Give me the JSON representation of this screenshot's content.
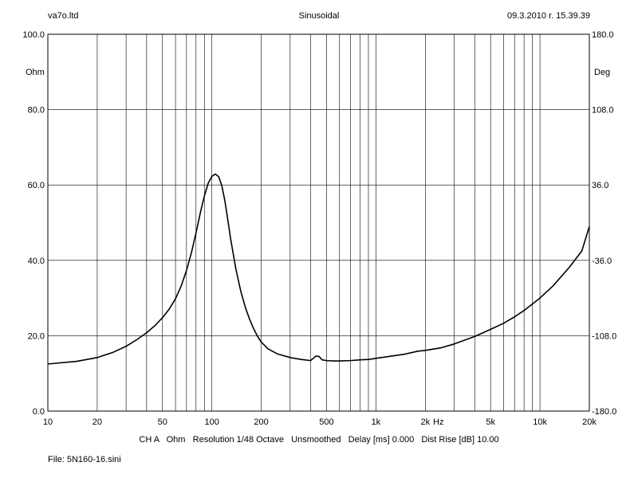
{
  "header": {
    "left": "va7o.ltd",
    "center": "Sinusoidal",
    "right": "09.3.2010 r. 15.39.39"
  },
  "footer": {
    "settings": "CH A   Ohm   Resolution 1/48 Octave   Unsmoothed   Delay [ms] 0.000   Dist Rise [dB] 10.00",
    "file": "File: 5N160-16.sini"
  },
  "chart_data": {
    "type": "line",
    "title": "Sinusoidal",
    "xlabel": "Hz",
    "ylabel": "Ohm",
    "y2label": "Deg",
    "xscale": "log",
    "xlim": [
      10,
      20000
    ],
    "ylim": [
      0,
      100
    ],
    "y2lim": [
      -180,
      180
    ],
    "grid": true,
    "line_color": "#000000",
    "x_ticks": [
      {
        "value": 10,
        "label": "10"
      },
      {
        "value": 20,
        "label": "20"
      },
      {
        "value": 50,
        "label": "50"
      },
      {
        "value": 100,
        "label": "100"
      },
      {
        "value": 200,
        "label": "200"
      },
      {
        "value": 500,
        "label": "500"
      },
      {
        "value": 1000,
        "label": "1k"
      },
      {
        "value": 2000,
        "label": "2k"
      },
      {
        "value": 5000,
        "label": "5k"
      },
      {
        "value": 10000,
        "label": "10k"
      },
      {
        "value": 20000,
        "label": "20k"
      }
    ],
    "y_ticks": [
      {
        "value": 0,
        "label": "0.0"
      },
      {
        "value": 20,
        "label": "20.0"
      },
      {
        "value": 40,
        "label": "40.0"
      },
      {
        "value": 60,
        "label": "60.0"
      },
      {
        "value": 80,
        "label": "80.0"
      },
      {
        "value": 100,
        "label": "100.0"
      }
    ],
    "y2_ticks": [
      {
        "value": -180,
        "label": "-180.0"
      },
      {
        "value": -108,
        "label": "-108.0"
      },
      {
        "value": -36,
        "label": "-36.0"
      },
      {
        "value": 36,
        "label": "36.0"
      },
      {
        "value": 108,
        "label": "108.0"
      },
      {
        "value": 180,
        "label": "180.0"
      }
    ],
    "series": [
      {
        "x": [
          10,
          15,
          20,
          25,
          30,
          35,
          40,
          45,
          50,
          55,
          60,
          65,
          70,
          75,
          80,
          85,
          90,
          95,
          100,
          105,
          110,
          115,
          120,
          125,
          130,
          140,
          150,
          160,
          170,
          180,
          190,
          200,
          220,
          250,
          300,
          350,
          400,
          430,
          450,
          470,
          500,
          550,
          600,
          700,
          800,
          900,
          1000,
          1200,
          1500,
          1800,
          2000,
          2500,
          3000,
          4000,
          5000,
          6000,
          7000,
          8000,
          10000,
          12000,
          15000,
          18000,
          20000
        ],
        "y": [
          12.5,
          13.2,
          14.2,
          15.6,
          17.2,
          19.0,
          20.8,
          22.7,
          24.8,
          27.1,
          29.8,
          33.2,
          37.3,
          42.0,
          47.3,
          52.6,
          57.1,
          60.5,
          62.3,
          62.9,
          62.2,
          59.8,
          55.8,
          50.8,
          45.8,
          37.7,
          31.8,
          27.5,
          24.3,
          21.8,
          19.8,
          18.3,
          16.5,
          15.2,
          14.2,
          13.7,
          13.4,
          14.6,
          14.5,
          13.6,
          13.4,
          13.3,
          13.3,
          13.4,
          13.6,
          13.7,
          14.0,
          14.5,
          15.1,
          15.9,
          16.1,
          16.8,
          17.8,
          19.8,
          21.7,
          23.3,
          25.0,
          26.7,
          30.0,
          33.2,
          38.0,
          42.5,
          49.0
        ]
      }
    ]
  }
}
